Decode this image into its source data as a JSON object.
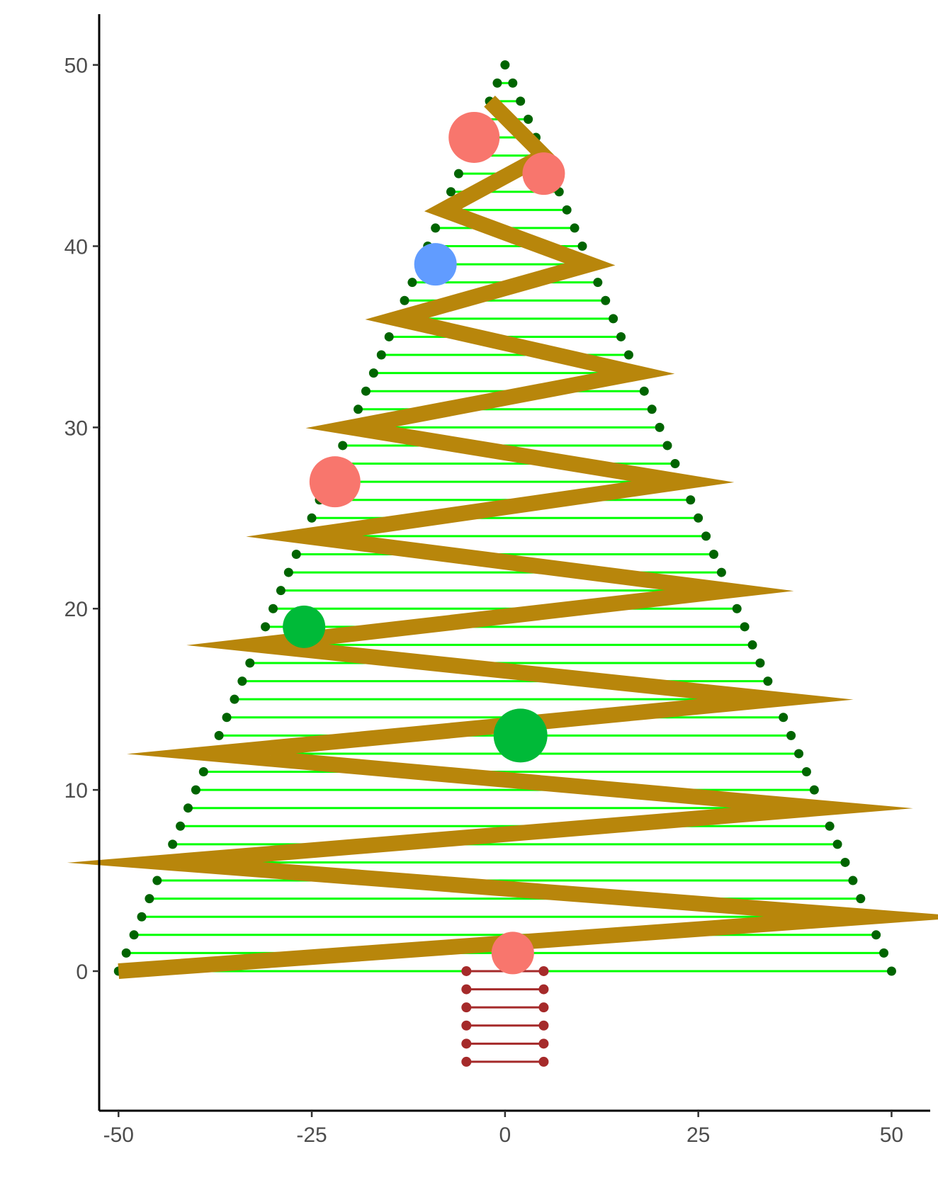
{
  "chart_data": {
    "type": "scatter",
    "title": "",
    "xlabel": "",
    "ylabel": "",
    "xlim": [
      -52.5,
      55
    ],
    "ylim": [
      -7.7,
      52.8
    ],
    "x_ticks": [
      -50,
      -25,
      0,
      25,
      50
    ],
    "y_ticks": [
      0,
      10,
      20,
      30,
      40,
      50
    ],
    "x_tick_labels": [
      "-50",
      "-25",
      "0",
      "25",
      "50"
    ],
    "y_tick_labels": [
      "0",
      "10",
      "20",
      "30",
      "40",
      "50"
    ],
    "grid": false,
    "legend": "none",
    "colors": {
      "outline_points": "#006400",
      "branch_lines": "#00ff00",
      "garland": "#b8860b",
      "trunk": "#a52a2a",
      "axis": "#000000"
    },
    "tree": {
      "apex": [
        0,
        50
      ],
      "base_half_width": 50,
      "y_min": 0,
      "y_max": 50,
      "y_step": 1
    },
    "trunk": {
      "x_left": -5,
      "x_right": 5,
      "y_values": [
        0,
        -1,
        -2,
        -3,
        -4,
        -5
      ]
    },
    "garland": {
      "points": [
        [
          -50,
          0
        ],
        [
          47,
          3
        ],
        [
          -44,
          6
        ],
        [
          41,
          9
        ],
        [
          -38,
          12
        ],
        [
          35,
          15
        ],
        [
          -32,
          18
        ],
        [
          29,
          21
        ],
        [
          -26,
          24
        ],
        [
          23,
          27
        ],
        [
          -20,
          30
        ],
        [
          17,
          33
        ],
        [
          -14,
          36
        ],
        [
          11,
          39
        ],
        [
          -8,
          42
        ],
        [
          5,
          45
        ],
        [
          -2,
          48
        ]
      ]
    },
    "ornaments": [
      {
        "x": -4,
        "y": 46,
        "size": 36,
        "color": "#f8766d"
      },
      {
        "x": 5,
        "y": 44,
        "size": 30,
        "color": "#f8766d"
      },
      {
        "x": -9,
        "y": 39,
        "size": 30,
        "color": "#619cff"
      },
      {
        "x": -22,
        "y": 27,
        "size": 36,
        "color": "#f8766d"
      },
      {
        "x": -26,
        "y": 19,
        "size": 30,
        "color": "#00ba38"
      },
      {
        "x": 2,
        "y": 13,
        "size": 38,
        "color": "#00ba38"
      },
      {
        "x": 1,
        "y": 1,
        "size": 30,
        "color": "#f8766d"
      }
    ]
  }
}
